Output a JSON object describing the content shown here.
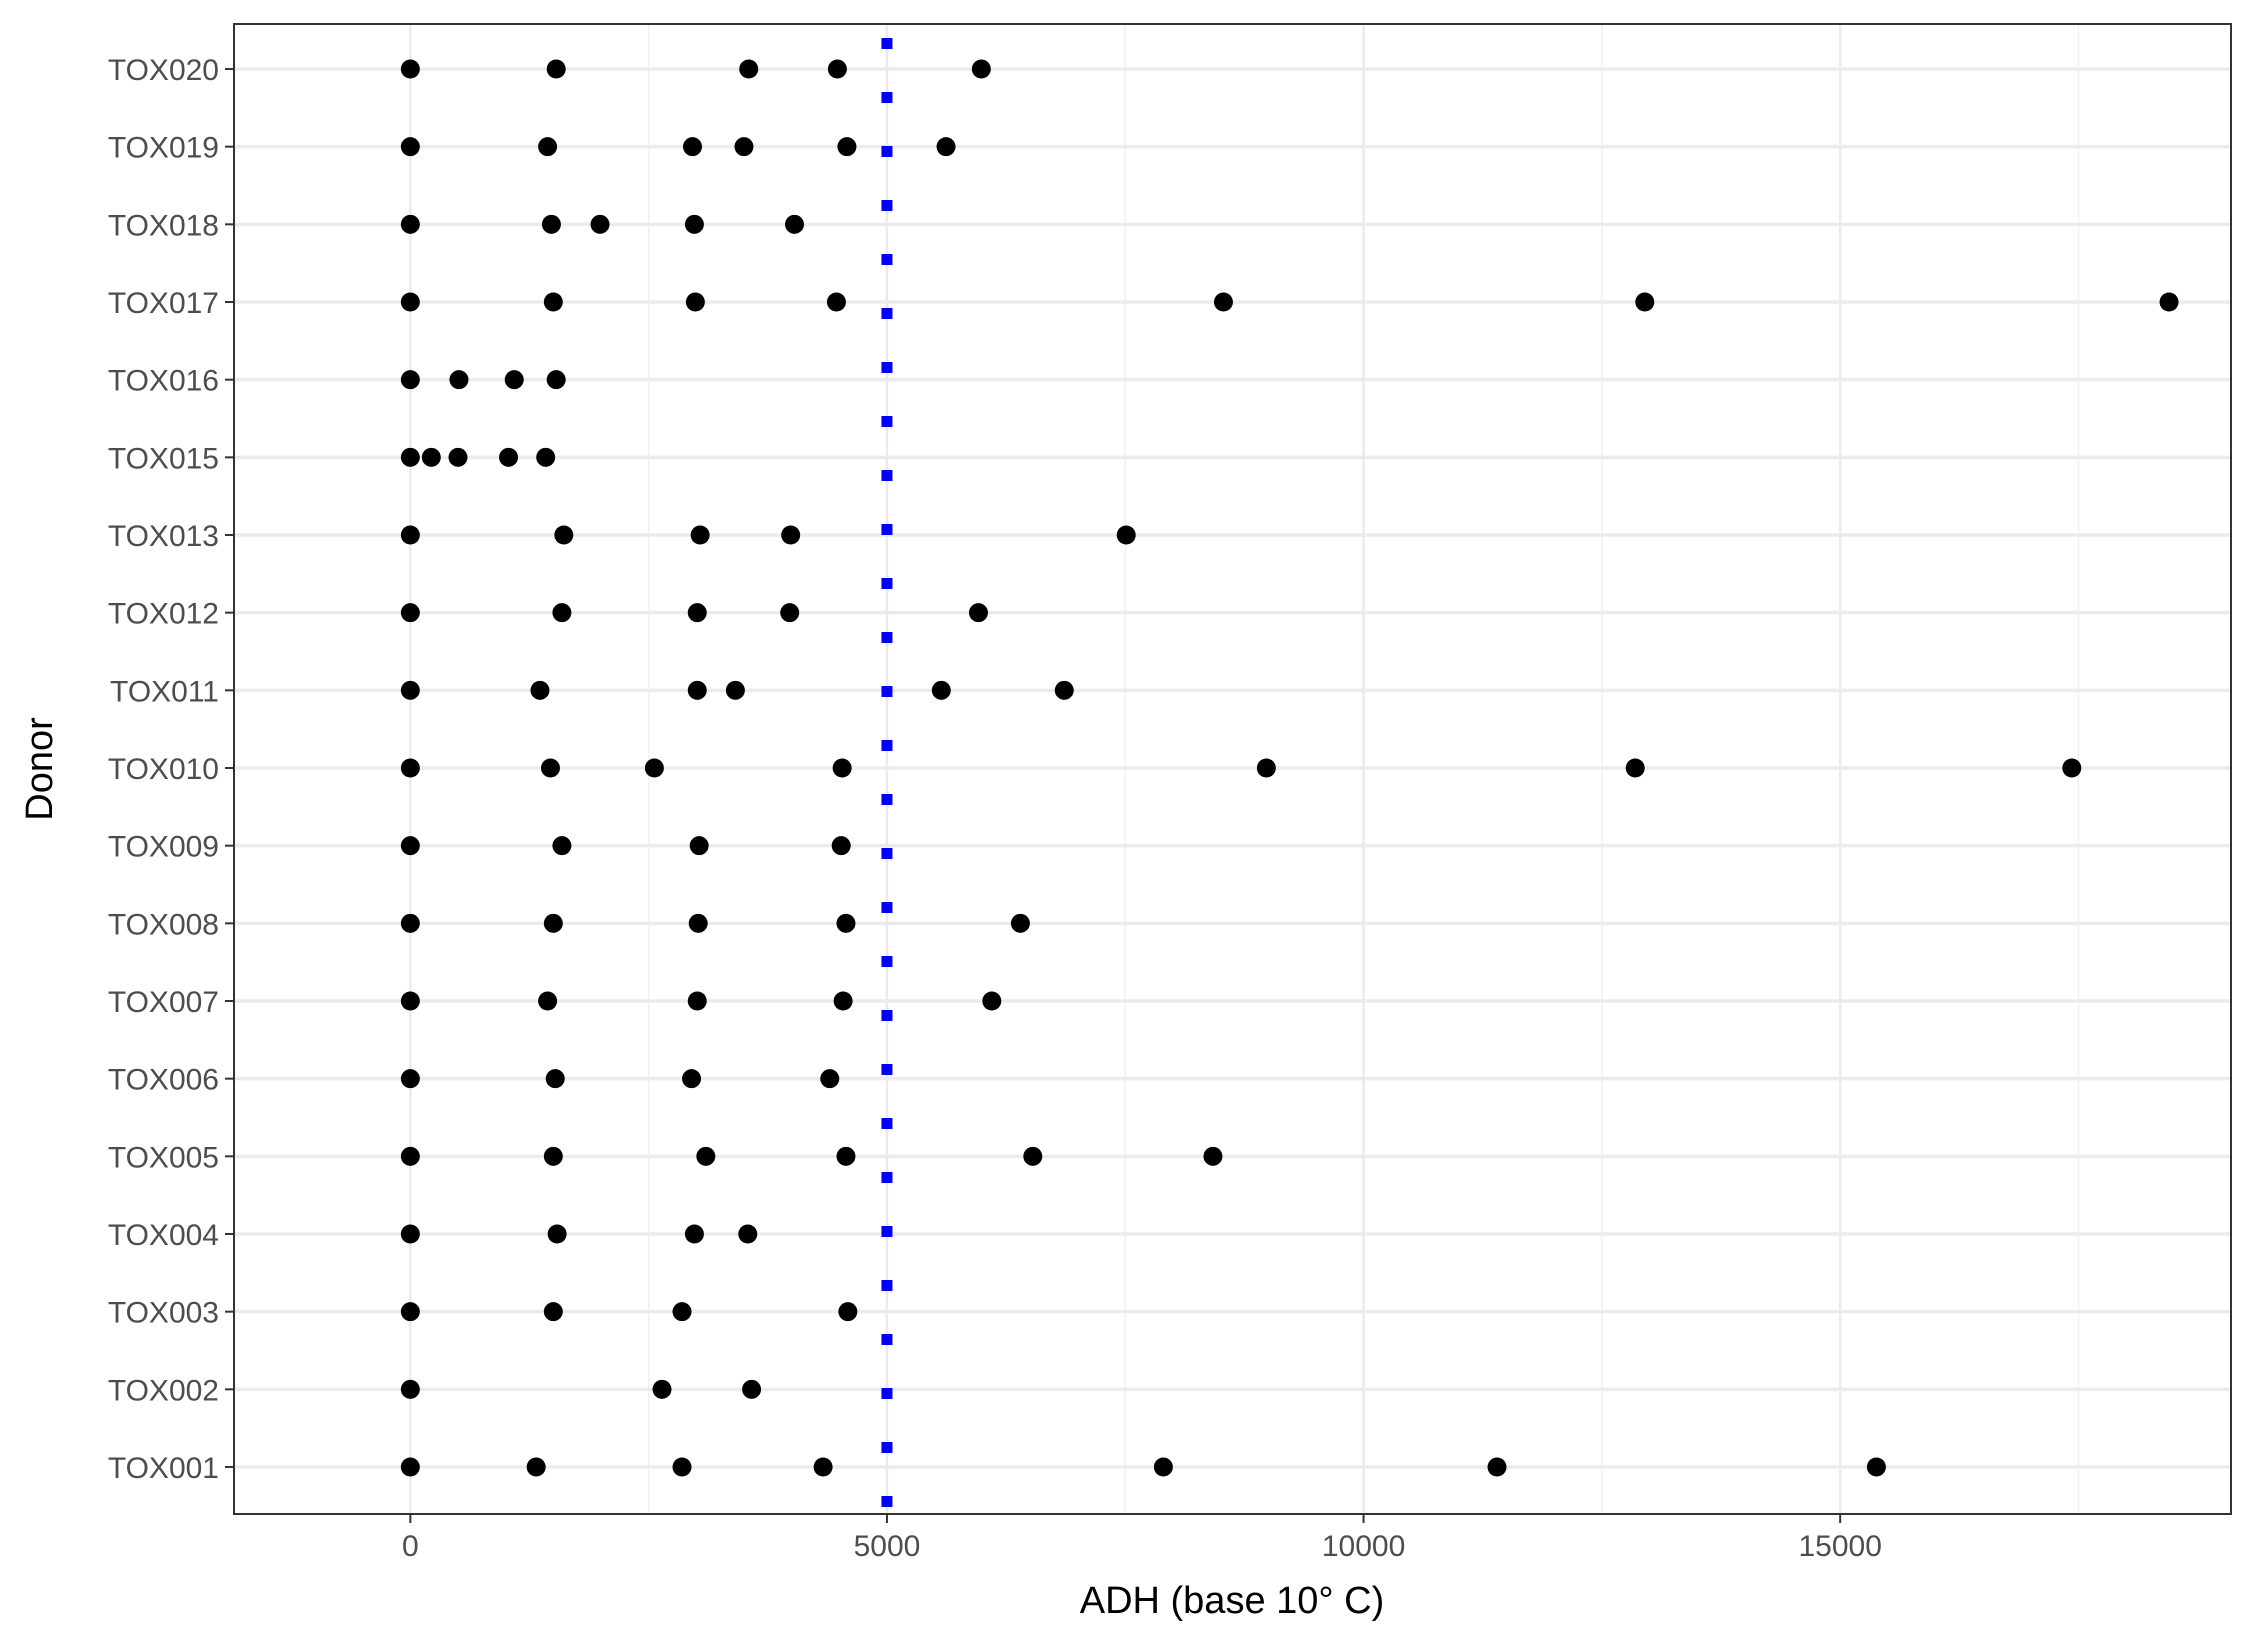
{
  "chart_data": {
    "type": "scatter",
    "title": "",
    "xlabel": "ADH (base 10° C)",
    "ylabel": "Donor",
    "xlim": [
      -1850,
      19100
    ],
    "x_ticks": [
      0,
      5000,
      10000,
      15000
    ],
    "x_tick_labels": [
      "0",
      "5000",
      "10000",
      "15000"
    ],
    "grid": true,
    "categories": [
      "TOX001",
      "TOX002",
      "TOX003",
      "TOX004",
      "TOX005",
      "TOX006",
      "TOX007",
      "TOX008",
      "TOX009",
      "TOX010",
      "TOX011",
      "TOX012",
      "TOX013",
      "TOX015",
      "TOX016",
      "TOX017",
      "TOX018",
      "TOX019",
      "TOX020"
    ],
    "point_color": "#000000",
    "reference_line": {
      "x": 5000,
      "style": "dotted",
      "color": "#0000ff"
    },
    "series": [
      {
        "category": "TOX001",
        "values": [
          0,
          1320,
          2850,
          4330,
          7900,
          11400,
          15380
        ]
      },
      {
        "category": "TOX002",
        "values": [
          0,
          2640,
          3580
        ]
      },
      {
        "category": "TOX003",
        "values": [
          0,
          1500,
          2850,
          4590
        ]
      },
      {
        "category": "TOX004",
        "values": [
          0,
          1540,
          2980,
          3540
        ]
      },
      {
        "category": "TOX005",
        "values": [
          0,
          1500,
          3100,
          4570,
          6530,
          8420
        ]
      },
      {
        "category": "TOX006",
        "values": [
          0,
          1520,
          2950,
          4400
        ]
      },
      {
        "category": "TOX007",
        "values": [
          0,
          1440,
          3010,
          4540,
          6100
        ]
      },
      {
        "category": "TOX008",
        "values": [
          0,
          1500,
          3020,
          4570,
          6400
        ]
      },
      {
        "category": "TOX009",
        "values": [
          0,
          1590,
          3030,
          4520
        ]
      },
      {
        "category": "TOX010",
        "values": [
          0,
          1470,
          2560,
          4530,
          8980,
          12850,
          17430
        ]
      },
      {
        "category": "TOX011",
        "values": [
          0,
          1360,
          3010,
          3410,
          5570,
          6860
        ]
      },
      {
        "category": "TOX012",
        "values": [
          0,
          1590,
          3010,
          3980,
          5960
        ]
      },
      {
        "category": "TOX013",
        "values": [
          0,
          1610,
          3040,
          3990,
          7510
        ]
      },
      {
        "category": "TOX015",
        "values": [
          0,
          220,
          500,
          1030,
          1420
        ]
      },
      {
        "category": "TOX016",
        "values": [
          0,
          510,
          1090,
          1530
        ]
      },
      {
        "category": "TOX017",
        "values": [
          0,
          1500,
          2990,
          4470,
          8530,
          12950,
          18450
        ]
      },
      {
        "category": "TOX018",
        "values": [
          0,
          1480,
          1990,
          2980,
          4030
        ]
      },
      {
        "category": "TOX019",
        "values": [
          0,
          1440,
          2960,
          3500,
          4580,
          5620
        ]
      },
      {
        "category": "TOX020",
        "values": [
          0,
          1530,
          3550,
          4480,
          5990
        ]
      }
    ]
  }
}
